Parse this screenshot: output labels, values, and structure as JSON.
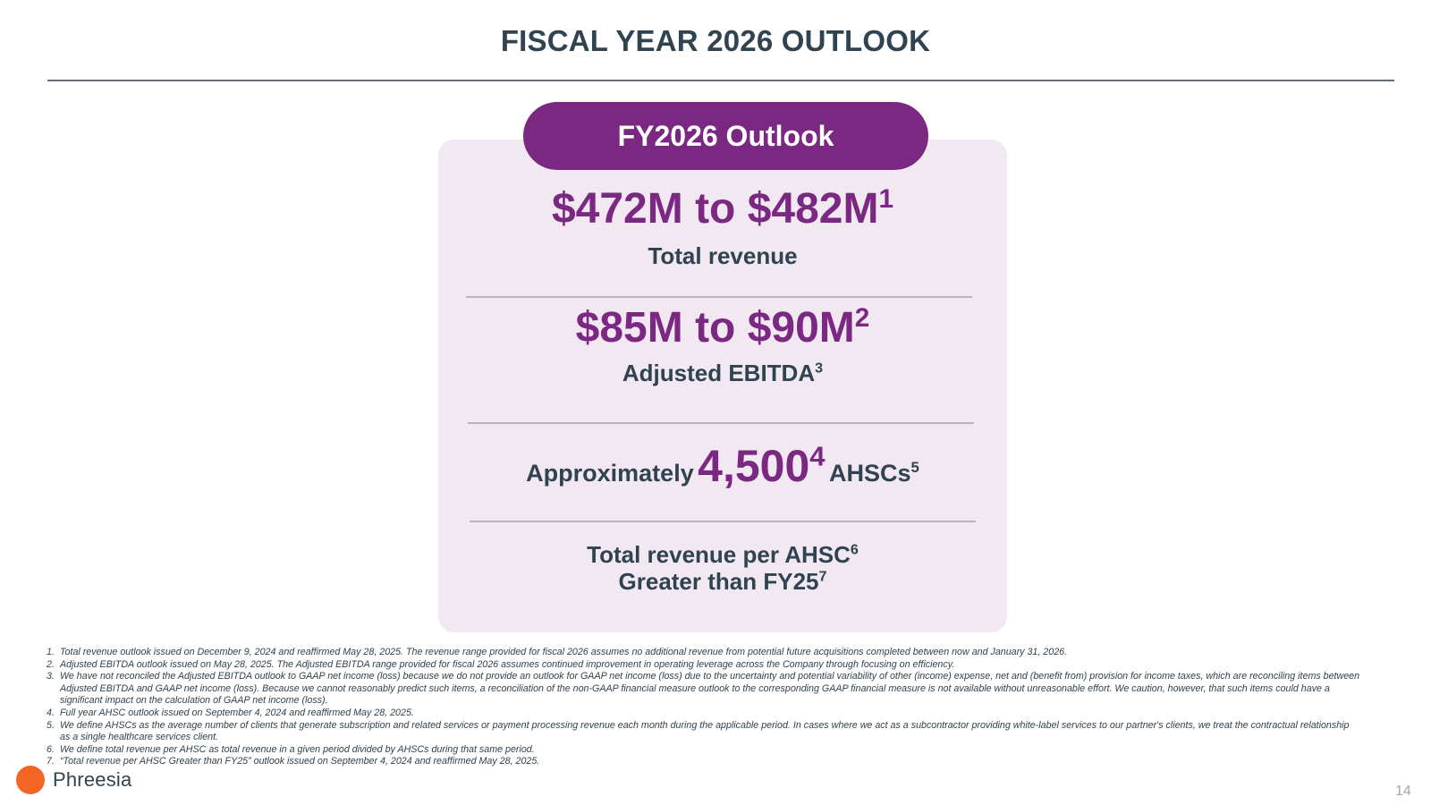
{
  "title": "FISCAL YEAR 2026 OUTLOOK",
  "outlook": {
    "header": "FY2026 Outlook",
    "revenue": {
      "value": "$472M to $482M",
      "sup": "1",
      "label": "Total revenue"
    },
    "ebitda": {
      "value": "$85M to $90M",
      "sup": "2",
      "label": "Adjusted EBITDA",
      "label_sup": "3"
    },
    "ahsc": {
      "prefix": "Approximately",
      "value": "4,500",
      "value_sup": "4",
      "suffix": "AHSCs",
      "suffix_sup": "5"
    },
    "rev_per_ahsc": {
      "line1": "Total revenue per AHSC",
      "line1_sup": "6",
      "line2": "Greater than FY25",
      "line2_sup": "7"
    }
  },
  "footnotes": [
    {
      "n": "1.",
      "text": "Total revenue outlook issued on December 9, 2024 and reaffirmed May 28, 2025. The revenue range provided for fiscal 2026 assumes no additional revenue from potential future acquisitions completed between now and January 31, 2026."
    },
    {
      "n": "2.",
      "text": "Adjusted EBITDA outlook issued on May 28, 2025. The Adjusted EBITDA range provided for fiscal 2026 assumes continued improvement in operating leverage across the Company through focusing on efficiency."
    },
    {
      "n": "3.",
      "text": "We have not reconciled the Adjusted EBITDA outlook to GAAP net income (loss) because we do not provide an outlook for GAAP net income (loss) due to the uncertainty and potential variability of other (income) expense, net and (benefit from) provision for income taxes, which are reconciling items between Adjusted EBITDA and GAAP net income (loss). Because we cannot reasonably predict such items, a reconciliation of the non-GAAP financial measure outlook to the corresponding GAAP financial measure is not available without unreasonable effort. We caution, however, that such items could have a significant impact on the calculation of GAAP net income (loss)."
    },
    {
      "n": "4.",
      "text": "Full year AHSC outlook issued on September 4, 2024 and reaffirmed May 28, 2025."
    },
    {
      "n": "5.",
      "text": "We define AHSCs as the average number of clients that generate subscription and related services or payment processing revenue each month during the applicable period. In cases where we act as a subcontractor providing white-label services to our partner's clients, we treat the contractual relationship as a single healthcare services client."
    },
    {
      "n": "6.",
      "text": "We define total revenue per AHSC as total revenue in a given period divided by AHSCs during that same period."
    },
    {
      "n": "7.",
      "text": "“Total revenue per AHSC Greater than FY25” outlook issued on September 4, 2024 and reaffirmed May 28, 2025."
    }
  ],
  "logo": {
    "name": "Phreesia"
  },
  "page_number": "14",
  "colors": {
    "accent": "#7b2883",
    "text": "#2f4350",
    "card_bg": "#f1e8f2",
    "logo_dot": "#f26522"
  }
}
